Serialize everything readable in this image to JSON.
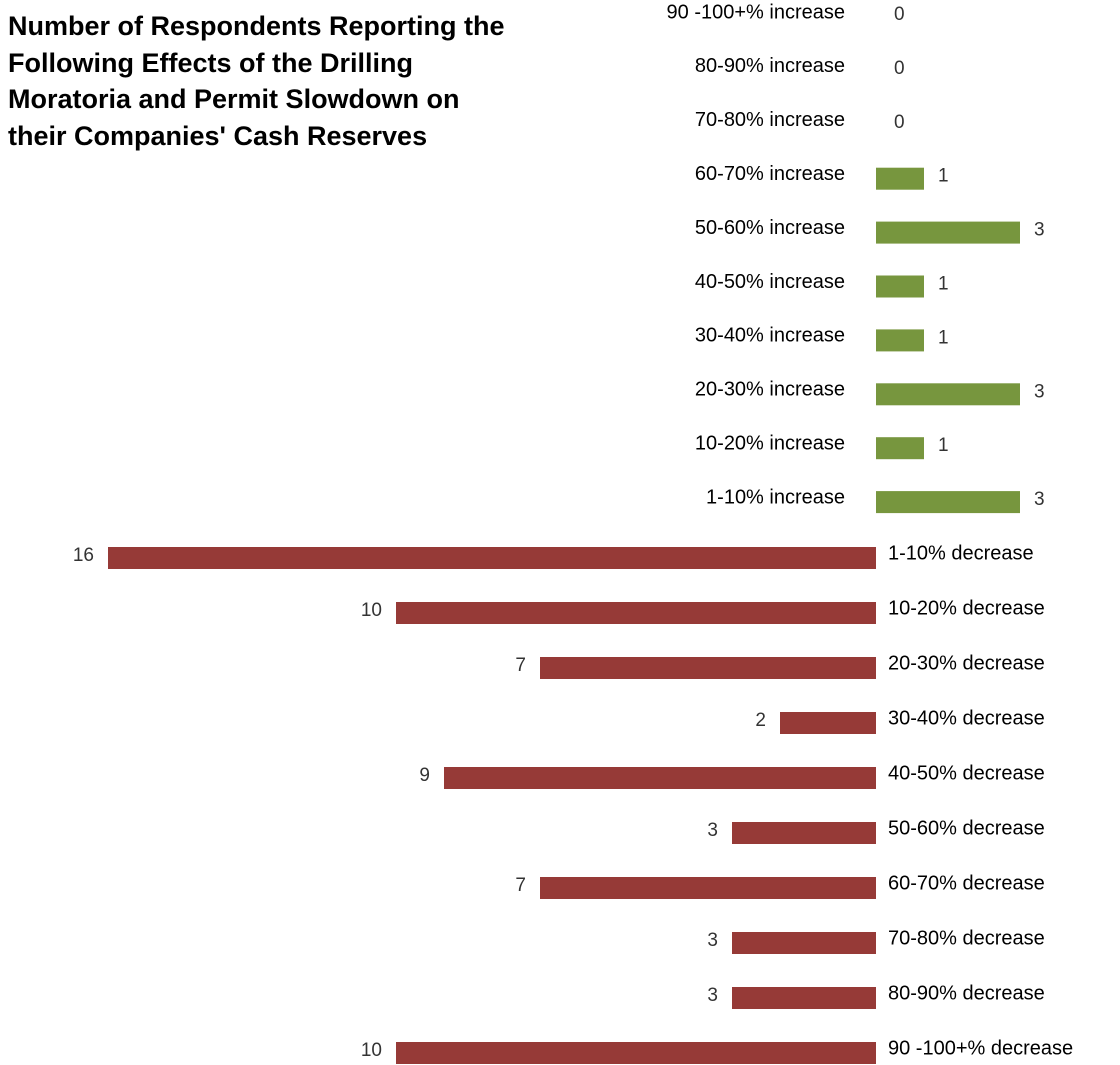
{
  "chart_data": {
    "type": "diverging-bar",
    "title": "Number of Respondents Reporting the Following Effects of the Drilling Moratoria and Permit Slowdown on their Companies' Cash Reserves",
    "series": [
      {
        "color": "#77963e",
        "direction": "right",
        "categories": [
          "90 -100+% increase",
          "80-90% increase",
          "70-80% increase",
          "60-70% increase",
          "50-60% increase",
          "40-50% increase",
          "30-40% increase",
          "20-30% increase",
          "10-20% increase",
          "1-10% increase"
        ],
        "values": [
          0,
          0,
          0,
          1,
          3,
          1,
          1,
          3,
          1,
          3
        ]
      },
      {
        "color": "#963a37",
        "direction": "left",
        "categories": [
          "1-10% decrease",
          "10-20% decrease",
          "20-30% decrease",
          "30-40% decrease",
          "40-50% decrease",
          "50-60% decrease",
          "60-70% decrease",
          "70-80% decrease",
          "80-90% decrease",
          "90 -100+% decrease"
        ],
        "values": [
          16,
          10,
          7,
          2,
          9,
          3,
          7,
          3,
          3,
          10
        ]
      }
    ]
  }
}
